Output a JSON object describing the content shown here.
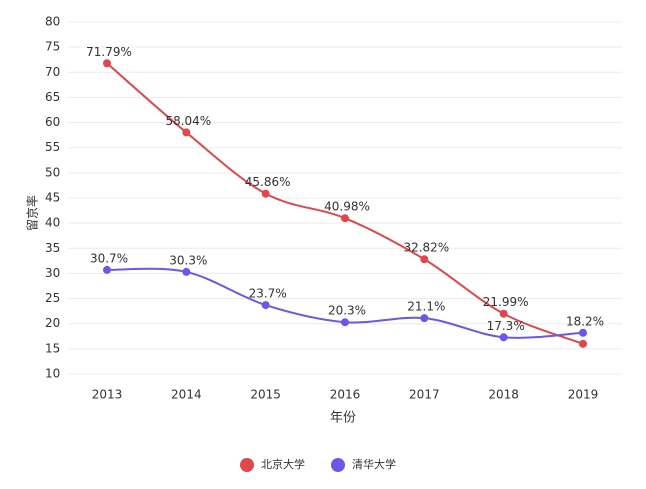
{
  "chart_data": {
    "type": "line",
    "x_label": "年份",
    "y_label": "留京率",
    "categories": [
      "2013",
      "2014",
      "2015",
      "2016",
      "2017",
      "2018",
      "2019"
    ],
    "series": [
      {
        "name": "北京大学",
        "color": "#e0474c",
        "values": [
          71.79,
          58.04,
          45.86,
          40.98,
          32.82,
          21.99,
          16
        ],
        "value_labels": [
          "71.79%",
          "58.04%",
          "45.86%",
          "40.98%",
          "32.82%",
          "21.99%",
          null
        ]
      },
      {
        "name": "清华大学",
        "color": "#6f55e8",
        "values": [
          30.7,
          30.3,
          23.7,
          20.3,
          21.1,
          17.3,
          18.2
        ],
        "value_labels": [
          "30.7%",
          "30.3%",
          "23.7%",
          "20.3%",
          "21.1%",
          "17.3%",
          "18.2%"
        ]
      }
    ],
    "ylim": [
      10,
      80
    ],
    "yticks": [
      10,
      15,
      20,
      25,
      30,
      35,
      40,
      45,
      50,
      55,
      60,
      65,
      70,
      75,
      80
    ],
    "grid": true,
    "legend": "bottom"
  }
}
